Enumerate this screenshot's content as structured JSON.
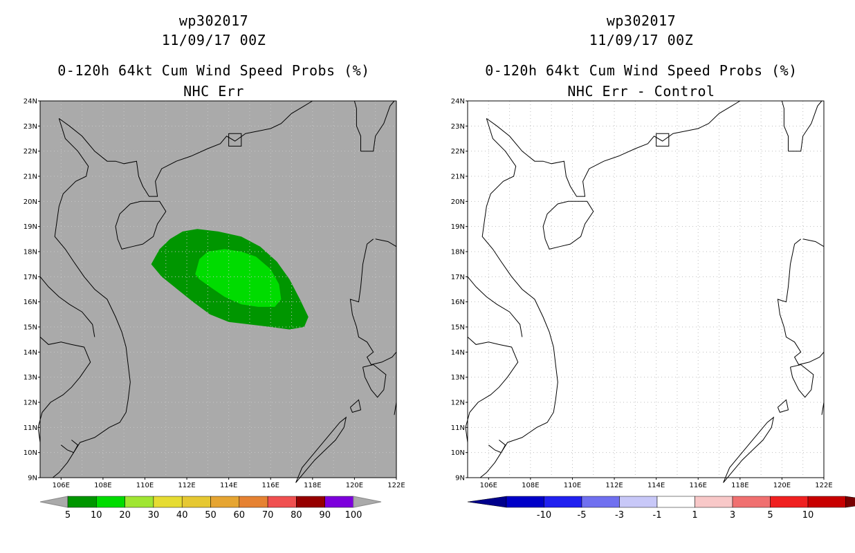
{
  "left": {
    "storm_id": "wp302017",
    "datetime": "11/09/17 00Z",
    "product": "0-120h 64kt Cum Wind Speed Probs (%)",
    "subtitle": "NHC Err",
    "background_color": "#aaaaaa",
    "colorbar": {
      "labels": [
        "5",
        "10",
        "20",
        "30",
        "40",
        "50",
        "60",
        "70",
        "80",
        "90",
        "100"
      ],
      "colors": [
        "#009600",
        "#00dc00",
        "#a0e632",
        "#e6dc32",
        "#e6c832",
        "#e6a532",
        "#e68232",
        "#f05050",
        "#960000",
        "#7d00dc"
      ],
      "end_color": "#aaaaaa"
    },
    "probability_contours": [
      {
        "level": "5",
        "color": "#009600"
      },
      {
        "level": "10",
        "color": "#00dc00"
      }
    ]
  },
  "right": {
    "storm_id": "wp302017",
    "datetime": "11/09/17 00Z",
    "product": "0-120h 64kt Cum Wind Speed Probs (%)",
    "subtitle": "NHC Err - Control",
    "background_color": "#ffffff",
    "colorbar": {
      "labels": [
        "-10",
        "-5",
        "-3",
        "-1",
        "1",
        "3",
        "5",
        "10"
      ],
      "colors": [
        "#0000c8",
        "#2020f0",
        "#7070f0",
        "#c8c8f8",
        "#ffffff",
        "#f8c8c8",
        "#f07070",
        "#f02020",
        "#c80000"
      ],
      "low_end_color": "#00008c",
      "high_end_color": "#780000"
    }
  },
  "map": {
    "lat_labels": [
      "24N",
      "23N",
      "22N",
      "21N",
      "20N",
      "19N",
      "18N",
      "17N",
      "16N",
      "15N",
      "14N",
      "13N",
      "12N",
      "11N",
      "10N",
      "9N"
    ],
    "lon_labels": [
      "106E",
      "108E",
      "110E",
      "112E",
      "114E",
      "116E",
      "118E",
      "120E",
      "122E"
    ]
  }
}
